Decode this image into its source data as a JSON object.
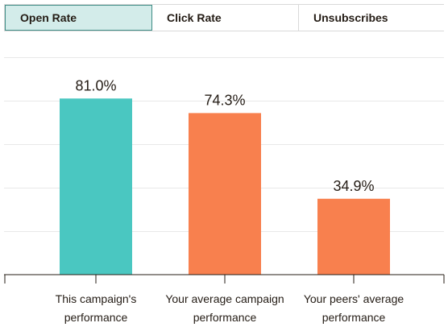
{
  "tabs": [
    {
      "label": "Open Rate",
      "active": true
    },
    {
      "label": "Click Rate",
      "active": false
    },
    {
      "label": "Unsubscribes",
      "active": false
    }
  ],
  "chart_data": {
    "type": "bar",
    "categories": [
      [
        "This campaign's",
        "performance"
      ],
      [
        "Your average campaign",
        "performance"
      ],
      [
        "Your peers' average",
        "performance"
      ]
    ],
    "values": [
      81.0,
      74.3,
      34.9
    ],
    "value_labels": [
      "81.0%",
      "74.3%",
      "34.9%"
    ],
    "bar_colors": [
      "#4ac7c1",
      "#f8804e",
      "#f8804e"
    ],
    "ylim": [
      0,
      100
    ],
    "grid": true
  }
}
